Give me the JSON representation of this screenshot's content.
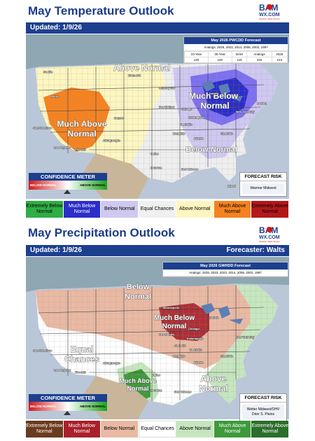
{
  "temperature": {
    "title": "May Temperature Outlook",
    "updated": "Updated: 1/9/26",
    "forecaster": "",
    "analog_table": {
      "title": "May 2026 PWCDD Forecast",
      "analogs": "Analogs: 2025, 2023, 2014, 2006, 2002, 1997",
      "headers": [
        "10-Year",
        "30-Year",
        "BAM",
        "Analogs",
        "2025"
      ],
      "values": [
        "126",
        "119",
        "115",
        "115",
        "123"
      ]
    },
    "map_labels": {
      "above_normal": "Above Normal",
      "much_below": [
        "Much Below",
        "Normal"
      ],
      "much_above": [
        "Much Above",
        "Normal"
      ],
      "below_normal": "Below Normal"
    },
    "cities": [
      "Seattle",
      "Boise",
      "Denver",
      "San Francisco",
      "Los Angeles",
      "Phoenix",
      "Albuquerque",
      "Bismarck",
      "Minneapolis",
      "Des Moines",
      "Chicago",
      "Detroit",
      "Indianapolis",
      "Nashville",
      "Atlanta",
      "Charlotte",
      "Memphis",
      "Dallas",
      "Houston",
      "New Orleans",
      "New York City",
      "Boston",
      "Miami"
    ],
    "confidence_meter": {
      "title": "CONFIDENCE METER",
      "left": "BELOW NORMAL",
      "right": "ABOVE NORMAL"
    },
    "forecast_risk": {
      "title": "FORECAST RISK",
      "value": "Warmer Midwest"
    },
    "legend": [
      {
        "label": "Extremely Below Normal",
        "color": "#2fae45",
        "text_color": "#000000"
      },
      {
        "label": "Much Below Normal",
        "color": "#2b2ec9",
        "text_color": "#ffffff"
      },
      {
        "label": "Below Normal",
        "color": "#cfc8f0",
        "text_color": "#000000"
      },
      {
        "label": "Equal Chances",
        "color": "#f0f0f0",
        "text_color": "#000000"
      },
      {
        "label": "Above Normal",
        "color": "#fdf6c0",
        "text_color": "#000000"
      },
      {
        "label": "Much Above Normal",
        "color": "#f58220",
        "text_color": "#000000"
      },
      {
        "label": "Extremely Above Normal",
        "color": "#b3171b",
        "text_color": "#000000"
      }
    ]
  },
  "precipitation": {
    "title": "May Precipitation Outlook",
    "updated": "Updated: 1/9/26",
    "forecaster": "Forecaster: Walts",
    "analog_table": {
      "title": "May 2026 GWHDD Forecast",
      "analogs": "Analogs: 2025, 2023, 2023, 2014, 2006, 2002, 1997"
    },
    "map_labels": {
      "below_normal": [
        "Below",
        "Normal"
      ],
      "much_below": [
        "Much Below",
        "Normal"
      ],
      "equal_chances": [
        "Equal",
        "Chances"
      ],
      "much_above": [
        "Much Above",
        "Normal"
      ],
      "above_normal": [
        "Above",
        "Normal"
      ]
    },
    "cities": [
      "Minneapolis",
      "Des Moines",
      "Chicago",
      "Indianapolis",
      "St. Louis",
      "Detroit",
      "New York City",
      "San Francisco",
      "Los Angeles",
      "Phoenix",
      "Albuquerque",
      "Dallas",
      "Houston",
      "Memphis",
      "Nashville",
      "Atlanta",
      "New Orleans",
      "Charlotte"
    ],
    "confidence_meter": {
      "title": "CONFIDENCE METER",
      "left": "BELOW NORMAL",
      "right": "ABOVE NORMAL"
    },
    "forecast_risk": {
      "title": "FORECAST RISK",
      "value": "Wetter Midwest/OHV Drier S. Plains"
    },
    "legend": [
      {
        "label": "Extremely Below Normal",
        "color": "#6b3b1e",
        "text_color": "#ffffff"
      },
      {
        "label": "Much Below Normal",
        "color": "#a8202a",
        "text_color": "#ffffff"
      },
      {
        "label": "Below Normal",
        "color": "#e9b9a3",
        "text_color": "#000000"
      },
      {
        "label": "Equal Chances",
        "color": "#ffffff",
        "text_color": "#000000"
      },
      {
        "label": "Above Normal",
        "color": "#c6e6bf",
        "text_color": "#000000"
      },
      {
        "label": "Much Above Normal",
        "color": "#3e9a3a",
        "text_color": "#ffffff"
      },
      {
        "label": "Extremely Above Normal",
        "color": "#2c6e2c",
        "text_color": "#ffffff"
      }
    ]
  },
  "logo": {
    "top": "BAM",
    "bottom": "WX.COM",
    "tagline": "Weather Made Simple"
  }
}
